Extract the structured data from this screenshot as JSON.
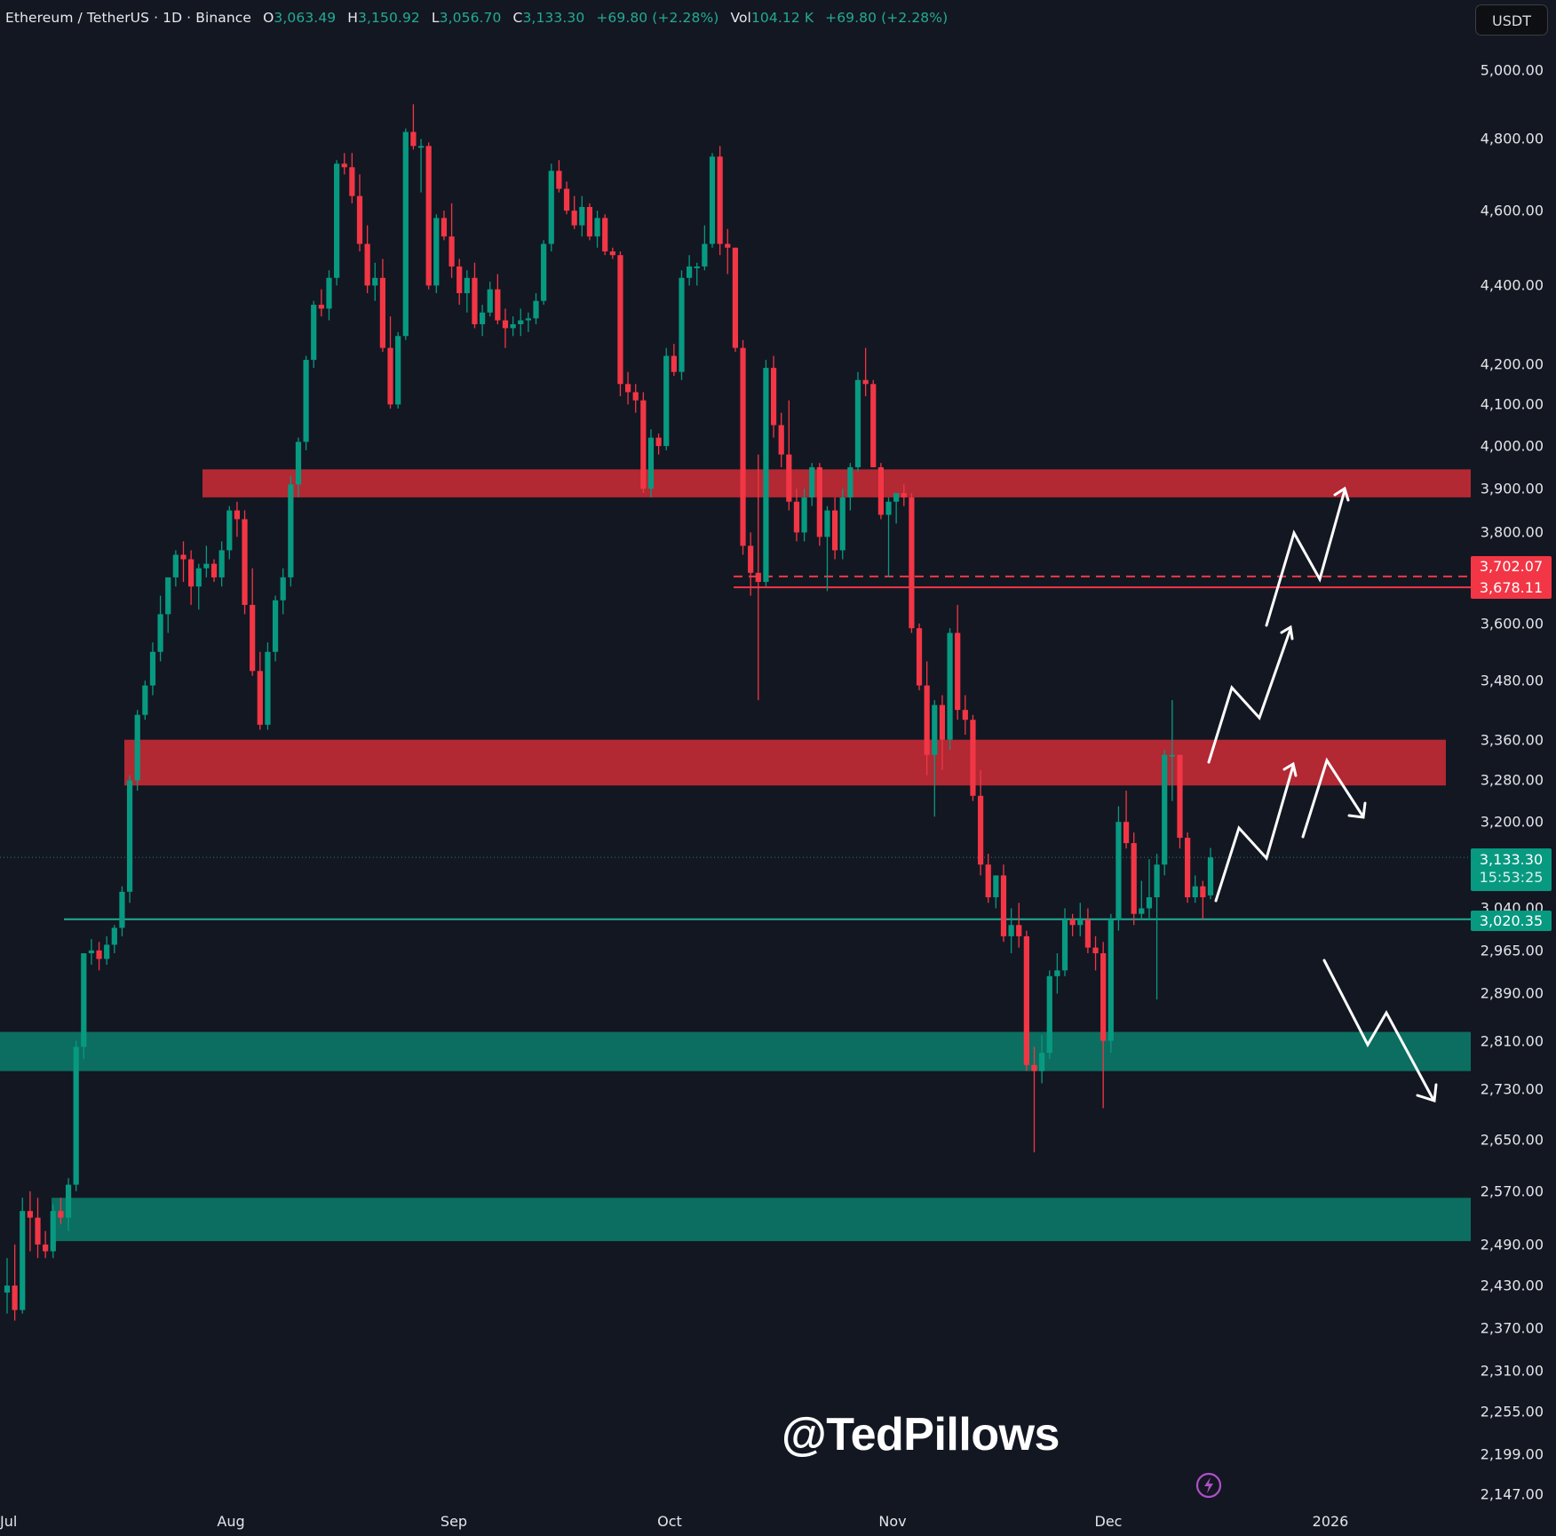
{
  "header": {
    "symbol": "Ethereum / TetherUS · 1D · Binance",
    "open_label": "O",
    "open": "3,063.49",
    "high_label": "H",
    "high": "3,150.92",
    "low_label": "L",
    "low": "3,056.70",
    "close_label": "C",
    "close": "3,133.30",
    "change": "+69.80 (+2.28%)",
    "vol_label": "Vol",
    "volume": "104.12 K",
    "vol_change": "+69.80 (+2.28%)"
  },
  "currency_button": "USDT",
  "price_axis": {
    "ticks": [
      "5,000.00",
      "4,800.00",
      "4,600.00",
      "4,400.00",
      "4,200.00",
      "4,100.00",
      "4,000.00",
      "3,900.00",
      "3,800.00",
      "3,600.00",
      "3,480.00",
      "3,360.00",
      "3,280.00",
      "3,200.00",
      "3,040.00",
      "2,965.00",
      "2,890.00",
      "2,810.00",
      "2,730.00",
      "2,650.00",
      "2,570.00",
      "2,490.00",
      "2,430.00",
      "2,370.00",
      "2,310.00",
      "2,255.00",
      "2,199.00",
      "2,147.00"
    ],
    "tags": {
      "dashed_level": "3,702.07",
      "solid_red_level": "3,678.11",
      "last_price": "3,133.30",
      "countdown": "15:53:25",
      "support_line": "3,020.35"
    }
  },
  "time_axis": {
    "ticks": [
      "Jul",
      "Aug",
      "Sep",
      "Oct",
      "Nov",
      "Dec",
      "2026"
    ]
  },
  "watermark": "@TedPillows",
  "colors": {
    "background": "#131722",
    "up": "#089981",
    "down": "#f23645",
    "resistance_zone": "#b22833",
    "support_zone": "#0b6e60",
    "line_red": "#f23645",
    "line_green": "#22ab94",
    "arrow": "#ffffff",
    "bolt": "#b04fc7"
  },
  "chart_data": {
    "type": "candlestick",
    "title": "Ethereum / TetherUS · 1D · Binance",
    "xlabel": "",
    "ylabel": "USDT",
    "scale": "log",
    "ylim": [
      2120,
      5050
    ],
    "x_ticks": [
      "Jul",
      "Aug",
      "Sep",
      "Oct",
      "Nov",
      "Dec",
      "2026"
    ],
    "last": {
      "open": 3063.49,
      "high": 3150.92,
      "low": 3056.7,
      "close": 3133.3,
      "change": 69.8,
      "change_pct": 2.28,
      "volume": "104.12K"
    },
    "zones": [
      {
        "kind": "resistance",
        "from": 3880,
        "to": 3945
      },
      {
        "kind": "resistance",
        "from": 3270,
        "to": 3360
      },
      {
        "kind": "support",
        "from": 2760,
        "to": 2825
      },
      {
        "kind": "support",
        "from": 2495,
        "to": 2560
      }
    ],
    "levels": [
      {
        "price": 3702.07,
        "style": "dashed",
        "color": "red"
      },
      {
        "price": 3678.11,
        "style": "solid",
        "color": "red"
      },
      {
        "price": 3020.35,
        "style": "solid",
        "color": "green"
      },
      {
        "price": 3133.3,
        "style": "dotted",
        "color": "green",
        "label": "last"
      }
    ],
    "scenarios": [
      {
        "name": "bull",
        "path": [
          3040,
          3220,
          3160,
          3300
        ]
      },
      {
        "name": "bull-extended",
        "path": [
          3330,
          3470,
          3400,
          3600,
          3640,
          3720,
          3690,
          3920
        ]
      },
      {
        "name": "rejection",
        "path": [
          3200,
          3310,
          3230
        ]
      },
      {
        "name": "bear",
        "path": [
          2950,
          2790,
          2840,
          2690
        ]
      }
    ],
    "candles_estimated": true,
    "candles": [
      [
        2420,
        2470,
        2390,
        2430
      ],
      [
        2430,
        2490,
        2380,
        2395
      ],
      [
        2395,
        2560,
        2390,
        2540
      ],
      [
        2540,
        2570,
        2480,
        2530
      ],
      [
        2530,
        2560,
        2470,
        2490
      ],
      [
        2490,
        2510,
        2470,
        2480
      ],
      [
        2480,
        2550,
        2470,
        2540
      ],
      [
        2540,
        2560,
        2520,
        2530
      ],
      [
        2530,
        2590,
        2510,
        2580
      ],
      [
        2580,
        2810,
        2570,
        2800
      ],
      [
        2800,
        2960,
        2780,
        2960
      ],
      [
        2960,
        2985,
        2940,
        2965
      ],
      [
        2965,
        2980,
        2930,
        2950
      ],
      [
        2950,
        2990,
        2940,
        2975
      ],
      [
        2975,
        3010,
        2960,
        3005
      ],
      [
        3005,
        3080,
        2990,
        3070
      ],
      [
        3070,
        3290,
        3050,
        3280
      ],
      [
        3280,
        3420,
        3260,
        3410
      ],
      [
        3410,
        3480,
        3400,
        3470
      ],
      [
        3470,
        3560,
        3450,
        3540
      ],
      [
        3540,
        3660,
        3520,
        3620
      ],
      [
        3620,
        3700,
        3580,
        3700
      ],
      [
        3700,
        3760,
        3680,
        3750
      ],
      [
        3750,
        3780,
        3690,
        3740
      ],
      [
        3740,
        3760,
        3640,
        3680
      ],
      [
        3680,
        3730,
        3630,
        3720
      ],
      [
        3720,
        3770,
        3700,
        3730
      ],
      [
        3730,
        3740,
        3690,
        3700
      ],
      [
        3700,
        3780,
        3680,
        3760
      ],
      [
        3760,
        3860,
        3740,
        3850
      ],
      [
        3850,
        3870,
        3790,
        3830
      ],
      [
        3830,
        3850,
        3620,
        3640
      ],
      [
        3640,
        3720,
        3490,
        3500
      ],
      [
        3500,
        3540,
        3380,
        3390
      ],
      [
        3390,
        3560,
        3380,
        3540
      ],
      [
        3540,
        3660,
        3520,
        3650
      ],
      [
        3650,
        3720,
        3620,
        3700
      ],
      [
        3700,
        3930,
        3680,
        3910
      ],
      [
        3910,
        4020,
        3880,
        4010
      ],
      [
        4010,
        4220,
        3990,
        4210
      ],
      [
        4210,
        4360,
        4190,
        4350
      ],
      [
        4350,
        4390,
        4320,
        4340
      ],
      [
        4340,
        4440,
        4310,
        4420
      ],
      [
        4420,
        4740,
        4400,
        4730
      ],
      [
        4730,
        4760,
        4700,
        4720
      ],
      [
        4720,
        4760,
        4620,
        4640
      ],
      [
        4640,
        4700,
        4490,
        4510
      ],
      [
        4510,
        4560,
        4380,
        4400
      ],
      [
        4400,
        4460,
        4360,
        4420
      ],
      [
        4420,
        4470,
        4230,
        4240
      ],
      [
        4240,
        4320,
        4090,
        4100
      ],
      [
        4100,
        4280,
        4090,
        4270
      ],
      [
        4270,
        4830,
        4260,
        4820
      ],
      [
        4820,
        4900,
        4770,
        4780
      ],
      [
        4780,
        4800,
        4650,
        4780
      ],
      [
        4780,
        4790,
        4390,
        4400
      ],
      [
        4400,
        4590,
        4380,
        4580
      ],
      [
        4580,
        4600,
        4520,
        4530
      ],
      [
        4530,
        4620,
        4420,
        4450
      ],
      [
        4450,
        4470,
        4350,
        4380
      ],
      [
        4380,
        4440,
        4330,
        4420
      ],
      [
        4420,
        4460,
        4290,
        4300
      ],
      [
        4300,
        4350,
        4270,
        4330
      ],
      [
        4330,
        4410,
        4320,
        4390
      ],
      [
        4390,
        4430,
        4300,
        4310
      ],
      [
        4310,
        4340,
        4240,
        4290
      ],
      [
        4290,
        4320,
        4270,
        4300
      ],
      [
        4300,
        4340,
        4270,
        4310
      ],
      [
        4310,
        4330,
        4280,
        4315
      ],
      [
        4315,
        4380,
        4300,
        4360
      ],
      [
        4360,
        4520,
        4350,
        4510
      ],
      [
        4510,
        4730,
        4490,
        4710
      ],
      [
        4710,
        4740,
        4650,
        4660
      ],
      [
        4660,
        4680,
        4590,
        4600
      ],
      [
        4600,
        4640,
        4550,
        4560
      ],
      [
        4560,
        4640,
        4530,
        4610
      ],
      [
        4610,
        4620,
        4520,
        4530
      ],
      [
        4530,
        4600,
        4500,
        4580
      ],
      [
        4580,
        4590,
        4480,
        4490
      ],
      [
        4490,
        4500,
        4470,
        4480
      ],
      [
        4480,
        4490,
        4120,
        4150
      ],
      [
        4150,
        4180,
        4100,
        4130
      ],
      [
        4130,
        4150,
        4080,
        4110
      ],
      [
        4110,
        4130,
        3890,
        3900
      ],
      [
        3900,
        4040,
        3880,
        4020
      ],
      [
        4020,
        4030,
        3980,
        4000
      ],
      [
        4000,
        4240,
        3990,
        4220
      ],
      [
        4220,
        4250,
        4170,
        4180
      ],
      [
        4180,
        4440,
        4160,
        4420
      ],
      [
        4420,
        4480,
        4400,
        4450
      ],
      [
        4450,
        4460,
        4400,
        4450
      ],
      [
        4450,
        4560,
        4440,
        4510
      ],
      [
        4510,
        4760,
        4500,
        4750
      ],
      [
        4750,
        4780,
        4480,
        4510
      ],
      [
        4510,
        4550,
        4430,
        4500
      ],
      [
        4500,
        4500,
        4230,
        4240
      ],
      [
        4240,
        4260,
        3750,
        3770
      ],
      [
        3770,
        3800,
        3660,
        3710
      ],
      [
        3710,
        3980,
        3440,
        3690
      ],
      [
        3690,
        4210,
        3680,
        4190
      ],
      [
        4190,
        4220,
        4020,
        4050
      ],
      [
        4050,
        4080,
        3950,
        3980
      ],
      [
        3980,
        4110,
        3850,
        3870
      ],
      [
        3870,
        3900,
        3780,
        3800
      ],
      [
        3800,
        3900,
        3780,
        3880
      ],
      [
        3880,
        3960,
        3860,
        3950
      ],
      [
        3950,
        3960,
        3770,
        3790
      ],
      [
        3790,
        3860,
        3670,
        3850
      ],
      [
        3850,
        3880,
        3740,
        3760
      ],
      [
        3760,
        3900,
        3740,
        3880
      ],
      [
        3880,
        3960,
        3850,
        3950
      ],
      [
        3950,
        4180,
        3940,
        4160
      ],
      [
        4160,
        4240,
        4120,
        4150
      ],
      [
        4150,
        4160,
        3950,
        3950
      ],
      [
        3950,
        3960,
        3830,
        3840
      ],
      [
        3840,
        3880,
        3700,
        3870
      ],
      [
        3870,
        3890,
        3820,
        3890
      ],
      [
        3890,
        3910,
        3860,
        3880
      ],
      [
        3880,
        3890,
        3580,
        3590
      ],
      [
        3590,
        3600,
        3460,
        3470
      ],
      [
        3470,
        3520,
        3290,
        3330
      ],
      [
        3330,
        3440,
        3210,
        3430
      ],
      [
        3430,
        3450,
        3300,
        3360
      ],
      [
        3360,
        3590,
        3340,
        3580
      ],
      [
        3580,
        3640,
        3400,
        3420
      ],
      [
        3420,
        3450,
        3370,
        3400
      ],
      [
        3400,
        3410,
        3240,
        3250
      ],
      [
        3250,
        3300,
        3100,
        3120
      ],
      [
        3120,
        3140,
        3050,
        3060
      ],
      [
        3060,
        3070,
        3040,
        3100
      ],
      [
        3100,
        3120,
        2980,
        2990
      ],
      [
        2990,
        3040,
        2960,
        3010
      ],
      [
        3010,
        3050,
        2970,
        2990
      ],
      [
        2990,
        3000,
        2760,
        2770
      ],
      [
        2770,
        2800,
        2630,
        2760
      ],
      [
        2760,
        2820,
        2740,
        2790
      ],
      [
        2790,
        2930,
        2780,
        2920
      ],
      [
        2920,
        2960,
        2890,
        2930
      ],
      [
        2930,
        3040,
        2920,
        3020
      ],
      [
        3020,
        3030,
        2990,
        3010
      ],
      [
        3010,
        3050,
        2990,
        3020
      ],
      [
        3020,
        3040,
        2960,
        2970
      ],
      [
        2970,
        2990,
        2930,
        2960
      ],
      [
        2960,
        2980,
        2700,
        2810
      ],
      [
        2810,
        3030,
        2790,
        3020
      ],
      [
        3020,
        3230,
        3000,
        3200
      ],
      [
        3200,
        3260,
        3150,
        3160
      ],
      [
        3160,
        3180,
        3010,
        3030
      ],
      [
        3030,
        3090,
        3020,
        3040
      ],
      [
        3040,
        3130,
        3020,
        3060
      ],
      [
        3060,
        3140,
        2880,
        3120
      ],
      [
        3120,
        3340,
        3100,
        3330
      ],
      [
        3330,
        3440,
        3240,
        3330
      ],
      [
        3330,
        3330,
        3150,
        3170
      ],
      [
        3170,
        3180,
        3050,
        3060
      ],
      [
        3060,
        3100,
        3050,
        3080
      ],
      [
        3080,
        3090,
        3020,
        3060
      ],
      [
        3063.49,
        3150.92,
        3056.7,
        3133.3
      ]
    ]
  }
}
